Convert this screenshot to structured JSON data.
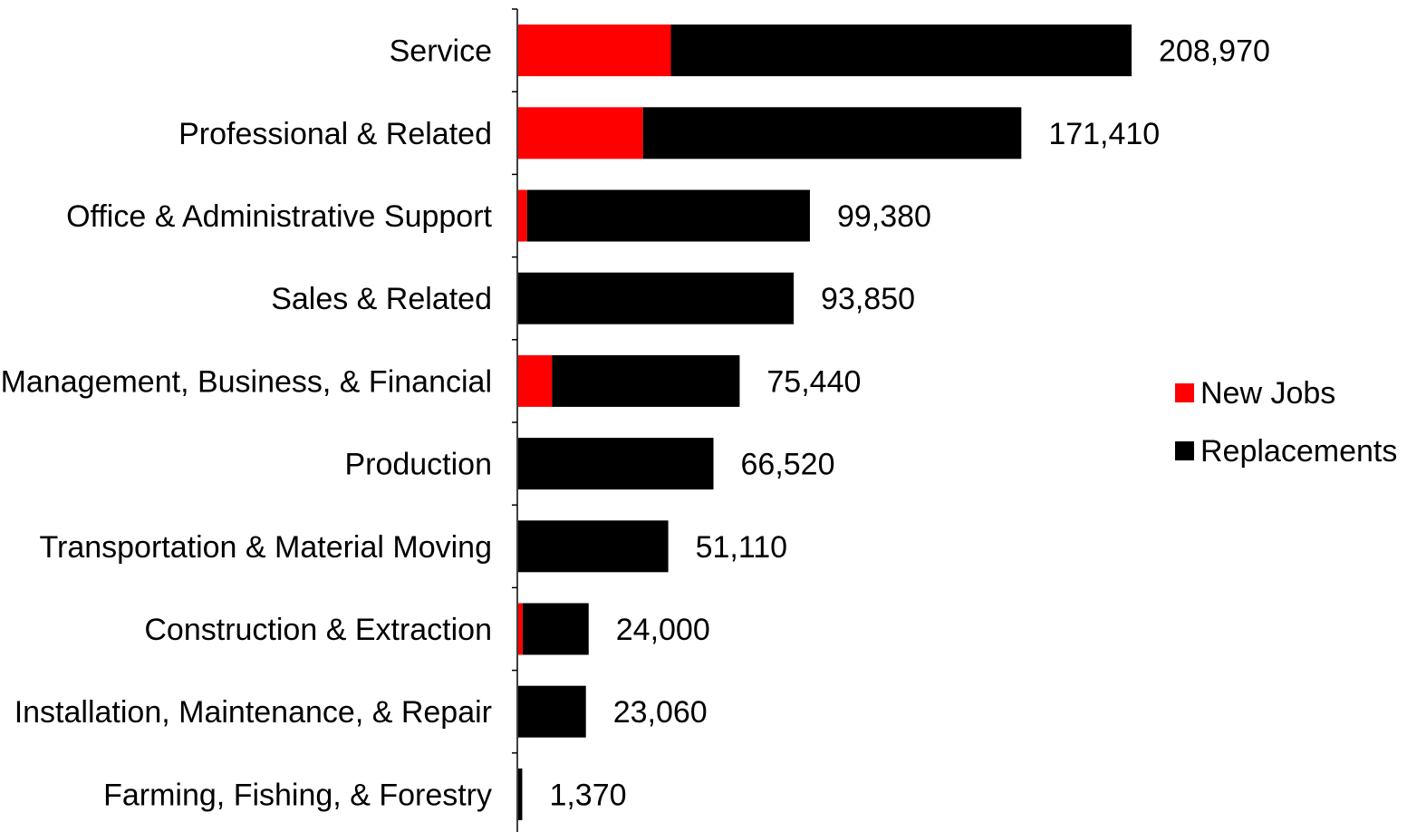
{
  "chart_data": {
    "type": "bar",
    "orientation": "horizontal",
    "stacked": true,
    "title": "",
    "xlabel": "",
    "ylabel": "",
    "categories": [
      "Service",
      "Professional & Related",
      "Office & Administrative Support",
      "Sales & Related",
      "Management, Business, & Financial",
      "Production",
      "Transportation & Material Moving",
      "Construction & Extraction",
      "Installation, Maintenance, & Repair",
      "Farming, Fishing, & Forestry"
    ],
    "series": [
      {
        "name": "New Jobs",
        "color": "#ff0000",
        "values": [
          52000,
          42500,
          3000,
          0,
          11500,
          0,
          0,
          1500,
          0,
          0
        ]
      },
      {
        "name": "Replacements",
        "color": "#000000",
        "values": [
          156970,
          128910,
          96380,
          93850,
          63940,
          66520,
          51110,
          22500,
          23060,
          1370
        ]
      }
    ],
    "totals": [
      "208,970",
      "171,410",
      "99,380",
      "93,850",
      "75,440",
      "66,520",
      "51,110",
      "24,000",
      "23,060",
      "1,370"
    ],
    "xlim": [
      0,
      210000
    ],
    "grid": false,
    "legend_position": "right"
  }
}
